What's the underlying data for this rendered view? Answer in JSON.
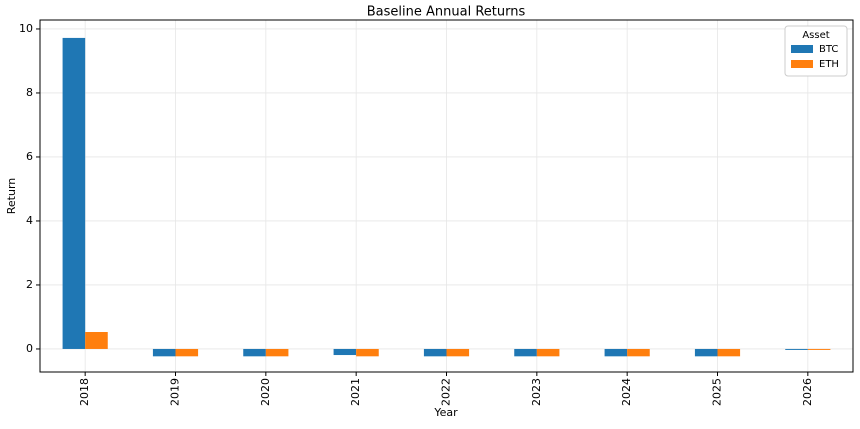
{
  "chart_data": {
    "type": "bar",
    "title": "Baseline Annual Returns",
    "x_label": "Year",
    "y_label": "Return",
    "categories": [
      "2018",
      "2019",
      "2020",
      "2021",
      "2022",
      "2023",
      "2024",
      "2025",
      "2026"
    ],
    "series": [
      {
        "name": "BTC",
        "color": "#1f77b4",
        "values": [
          9.72,
          -0.23,
          -0.23,
          -0.19,
          -0.23,
          -0.23,
          -0.23,
          -0.23,
          -0.03
        ]
      },
      {
        "name": "ETH",
        "color": "#ff7f0e",
        "values": [
          0.53,
          -0.23,
          -0.23,
          -0.23,
          -0.23,
          -0.23,
          -0.23,
          -0.23,
          -0.03
        ]
      }
    ],
    "legend_title": "Asset",
    "legend_position": "upper right",
    "ylim": [
      -0.72,
      10.28
    ],
    "yticks": [
      0,
      2,
      4,
      6,
      8,
      10
    ],
    "grid": true
  }
}
